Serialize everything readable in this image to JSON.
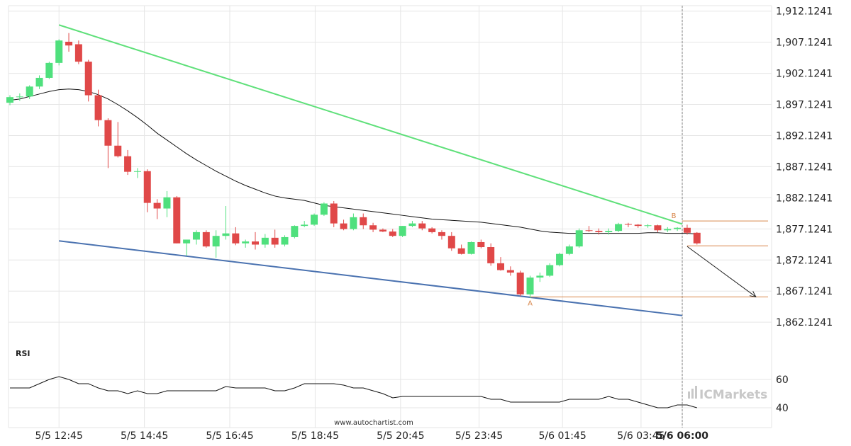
{
  "colors": {
    "bull": "#4fe07d",
    "bear": "#e04848",
    "upper_trendline": "#5fe07a",
    "lower_trendline": "#4a72b0",
    "moving_average": "#111111",
    "level_lines": "#d8864a",
    "rsi": "#111111",
    "grid": "#e6e6e6"
  },
  "watermark": {
    "text": "www.autochartist.com"
  },
  "brand": {
    "text": "ICMarkets",
    "icon": "bars-logo-icon"
  },
  "chart_data": [
    {
      "type": "candlestick",
      "y_ticks": [
        "1,912.1241",
        "1,907.1241",
        "1,902.1241",
        "1,897.1241",
        "1,892.1241",
        "1,887.1241",
        "1,882.1241",
        "1,877.1241",
        "1,872.1241",
        "1,867.1241",
        "1,862.1241"
      ],
      "y_tick_values": [
        1912.1241,
        1907.1241,
        1902.1241,
        1897.1241,
        1892.1241,
        1887.1241,
        1882.1241,
        1877.1241,
        1872.1241,
        1867.1241,
        1862.1241
      ],
      "ylim": [
        1858.5,
        1913.0
      ],
      "x_ticks": [
        "5/5 12:45",
        "5/5 14:45",
        "5/5 16:45",
        "5/5 18:45",
        "5/5 20:45",
        "5/5 23:45",
        "5/6 01:45",
        "5/6 03:45",
        "5/6 06:00"
      ],
      "x_tick_bold": [
        "5/6 06:00"
      ],
      "candles": [
        [
          1897.4,
          1898.6,
          1897.0,
          1898.3
        ],
        [
          1898.3,
          1898.9,
          1897.7,
          1898.4
        ],
        [
          1898.4,
          1900.2,
          1898.0,
          1900.0
        ],
        [
          1900.0,
          1901.8,
          1899.6,
          1901.4
        ],
        [
          1901.4,
          1904.0,
          1901.2,
          1903.8
        ],
        [
          1903.8,
          1907.6,
          1903.4,
          1907.4
        ],
        [
          1907.2,
          1908.6,
          1905.6,
          1906.6
        ],
        [
          1906.8,
          1907.4,
          1903.6,
          1904.0
        ],
        [
          1904.0,
          1904.3,
          1897.6,
          1898.6
        ],
        [
          1898.6,
          1899.5,
          1893.6,
          1894.6
        ],
        [
          1894.6,
          1894.9,
          1886.9,
          1890.5
        ],
        [
          1890.5,
          1894.3,
          1888.6,
          1888.8
        ],
        [
          1888.8,
          1889.8,
          1885.8,
          1886.3
        ],
        [
          1886.3,
          1886.9,
          1885.3,
          1886.4
        ],
        [
          1886.4,
          1886.7,
          1879.8,
          1881.3
        ],
        [
          1881.3,
          1881.9,
          1878.7,
          1880.4
        ],
        [
          1880.4,
          1883.2,
          1879.0,
          1882.2
        ],
        [
          1882.2,
          1882.4,
          1874.8,
          1874.8
        ],
        [
          1874.8,
          1875.4,
          1872.8,
          1875.4
        ],
        [
          1875.4,
          1876.9,
          1874.6,
          1876.6
        ],
        [
          1876.6,
          1876.9,
          1874.1,
          1874.3
        ],
        [
          1874.3,
          1876.9,
          1872.5,
          1876.0
        ],
        [
          1876.0,
          1880.8,
          1875.4,
          1876.4
        ],
        [
          1876.4,
          1877.4,
          1874.5,
          1874.8
        ],
        [
          1874.8,
          1875.4,
          1874.1,
          1875.1
        ],
        [
          1875.1,
          1876.6,
          1873.8,
          1874.6
        ],
        [
          1874.6,
          1876.3,
          1874.1,
          1875.7
        ],
        [
          1875.7,
          1877.0,
          1874.1,
          1874.6
        ],
        [
          1874.6,
          1876.1,
          1874.3,
          1875.8
        ],
        [
          1875.8,
          1877.7,
          1875.6,
          1877.6
        ],
        [
          1877.6,
          1878.4,
          1877.4,
          1877.8
        ],
        [
          1877.8,
          1879.6,
          1877.6,
          1879.4
        ],
        [
          1879.4,
          1881.4,
          1879.2,
          1881.2
        ],
        [
          1881.2,
          1881.6,
          1877.4,
          1878.0
        ],
        [
          1878.0,
          1878.6,
          1876.9,
          1877.1
        ],
        [
          1877.1,
          1879.6,
          1876.9,
          1879.0
        ],
        [
          1879.0,
          1879.6,
          1877.1,
          1877.7
        ],
        [
          1877.7,
          1878.1,
          1876.6,
          1877.0
        ],
        [
          1877.0,
          1877.2,
          1876.6,
          1876.7
        ],
        [
          1876.7,
          1877.1,
          1875.8,
          1876.0
        ],
        [
          1876.0,
          1877.6,
          1875.8,
          1877.6
        ],
        [
          1877.6,
          1878.4,
          1877.4,
          1878.0
        ],
        [
          1878.0,
          1878.4,
          1876.9,
          1877.2
        ],
        [
          1877.2,
          1877.4,
          1876.4,
          1876.6
        ],
        [
          1876.6,
          1876.9,
          1875.4,
          1876.0
        ],
        [
          1876.0,
          1876.6,
          1873.6,
          1874.0
        ],
        [
          1874.0,
          1874.6,
          1873.0,
          1873.1
        ],
        [
          1873.1,
          1875.1,
          1873.0,
          1875.0
        ],
        [
          1875.0,
          1875.4,
          1874.0,
          1874.2
        ],
        [
          1874.2,
          1874.8,
          1871.2,
          1871.6
        ],
        [
          1871.6,
          1872.6,
          1870.4,
          1870.5
        ],
        [
          1870.5,
          1871.1,
          1869.6,
          1870.1
        ],
        [
          1870.1,
          1870.4,
          1866.3,
          1866.6
        ],
        [
          1866.6,
          1869.6,
          1866.0,
          1869.3
        ],
        [
          1869.3,
          1870.1,
          1868.6,
          1869.6
        ],
        [
          1869.6,
          1871.6,
          1869.4,
          1871.3
        ],
        [
          1871.3,
          1873.3,
          1871.1,
          1873.1
        ],
        [
          1873.1,
          1874.6,
          1872.9,
          1874.3
        ],
        [
          1874.3,
          1877.2,
          1874.1,
          1876.9
        ],
        [
          1876.9,
          1877.6,
          1876.6,
          1876.8
        ],
        [
          1876.8,
          1877.2,
          1876.2,
          1876.6
        ],
        [
          1876.6,
          1877.2,
          1876.2,
          1876.8
        ],
        [
          1876.8,
          1878.1,
          1876.6,
          1877.9
        ],
        [
          1877.9,
          1878.1,
          1877.4,
          1877.8
        ],
        [
          1877.8,
          1877.9,
          1877.3,
          1877.6
        ],
        [
          1877.6,
          1877.9,
          1877.3,
          1877.7
        ],
        [
          1877.7,
          1877.8,
          1876.6,
          1876.9
        ],
        [
          1876.9,
          1877.4,
          1876.6,
          1877.1
        ],
        [
          1877.1,
          1877.4,
          1876.8,
          1877.3
        ],
        [
          1877.3,
          1877.8,
          1876.2,
          1876.5
        ],
        [
          1876.5,
          1876.6,
          1874.6,
          1874.8
        ]
      ],
      "moving_average": [
        1897.8,
        1898.0,
        1898.4,
        1898.8,
        1899.2,
        1899.5,
        1899.6,
        1899.5,
        1899.2,
        1898.7,
        1898.0,
        1897.1,
        1896.1,
        1895.0,
        1893.8,
        1892.5,
        1891.4,
        1890.3,
        1889.2,
        1888.2,
        1887.3,
        1886.4,
        1885.6,
        1884.8,
        1884.1,
        1883.5,
        1882.9,
        1882.4,
        1882.1,
        1881.9,
        1881.7,
        1881.3,
        1880.9,
        1880.7,
        1880.5,
        1880.3,
        1880.1,
        1879.9,
        1879.7,
        1879.5,
        1879.3,
        1879.1,
        1878.9,
        1878.7,
        1878.6,
        1878.5,
        1878.4,
        1878.3,
        1878.2,
        1878.0,
        1877.8,
        1877.6,
        1877.4,
        1877.1,
        1876.8,
        1876.6,
        1876.5,
        1876.4,
        1876.4,
        1876.4,
        1876.4,
        1876.4,
        1876.4,
        1876.4,
        1876.4,
        1876.5,
        1876.5,
        1876.4,
        1876.4,
        1876.4,
        1876.3
      ],
      "upper_trendline": {
        "from": [
          5,
          1909.9
        ],
        "to": [
          68.5,
          1877.9
        ]
      },
      "lower_trendline": {
        "from": [
          5,
          1875.2
        ],
        "to": [
          68.5,
          1863.2
        ]
      },
      "level_lines": [
        {
          "price": 1878.4,
          "from": 68.5,
          "label": "B"
        },
        {
          "price": 1874.4,
          "from": 69
        },
        {
          "price": 1866.2,
          "from": 53,
          "label": "A"
        }
      ],
      "projection": {
        "from": [
          69,
          1874.3
        ],
        "to": [
          76,
          1866.2
        ]
      },
      "current_marker_index": 68.5
    },
    {
      "type": "line",
      "title": "RSI",
      "y_ticks": [
        "60",
        "40"
      ],
      "y_tick_values": [
        60,
        40
      ],
      "ylim": [
        26,
        78
      ],
      "values": [
        54,
        54,
        54,
        57,
        60,
        62,
        60,
        57,
        57,
        54,
        52,
        52,
        50,
        52,
        50,
        50,
        52,
        52,
        52,
        52,
        52,
        52,
        55,
        54,
        54,
        54,
        54,
        52,
        52,
        54,
        57,
        57,
        57,
        57,
        56,
        54,
        54,
        52,
        50,
        47,
        48,
        48,
        48,
        48,
        48,
        48,
        48,
        48,
        48,
        46,
        46,
        44,
        44,
        44,
        44,
        44,
        44,
        46,
        46,
        46,
        46,
        48,
        46,
        46,
        44,
        42,
        40,
        40,
        42,
        42,
        40
      ],
      "line_end_index": 68.5
    }
  ]
}
